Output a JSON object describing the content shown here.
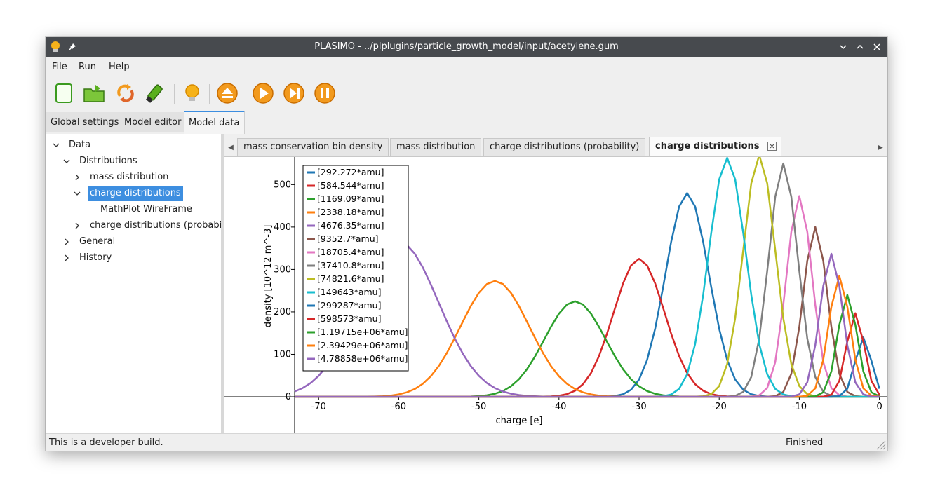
{
  "window": {
    "title": "PLASIMO - ../plplugins/particle_growth_model/input/acetylene.gum"
  },
  "menu": [
    "File",
    "Run",
    "Help"
  ],
  "toolbar": {
    "icons": [
      "new-file-icon",
      "open-folder-icon",
      "reload-icon",
      "plugin-icon",
      "bulb-icon",
      "eject-icon",
      "play-icon",
      "step-icon",
      "pause-icon"
    ]
  },
  "main_tabs": [
    {
      "label": "Global settings"
    },
    {
      "label": "Model editor"
    },
    {
      "label": "Model data",
      "active": true
    }
  ],
  "tree": [
    {
      "label": "Data",
      "level": 0,
      "expanded": true
    },
    {
      "label": "Distributions",
      "level": 1,
      "expanded": true
    },
    {
      "label": "mass distribution",
      "level": 2,
      "expanded": false
    },
    {
      "label": "charge distributions",
      "level": 2,
      "expanded": true,
      "selected": true
    },
    {
      "label": "MathPlot WireFrame",
      "level": 3,
      "leaf": true
    },
    {
      "label": "charge distributions (probabilit",
      "level": 2,
      "expanded": false
    },
    {
      "label": "General",
      "level": 1,
      "expanded": false
    },
    {
      "label": "History",
      "level": 1,
      "expanded": false
    }
  ],
  "sub_tabs": [
    {
      "label": "mass conservation bin density"
    },
    {
      "label": "mass distribution"
    },
    {
      "label": "charge distributions (probability)"
    },
    {
      "label": "charge distributions",
      "active": true
    }
  ],
  "status": {
    "left": "This is a developer build.",
    "right": "Finished"
  },
  "colors": {
    "accent": "#3d8ee0",
    "titlebar": "#474a4e",
    "icon_orange": "#f29a1e"
  },
  "chart_data": {
    "type": "line",
    "title": "",
    "xlabel": "charge [e]",
    "ylabel": "density [10^12 m^-3]",
    "xlim": [
      -73,
      1
    ],
    "ylim": [
      0,
      565
    ],
    "xticks": [
      -70,
      -60,
      -50,
      -40,
      -30,
      -20,
      -10,
      0
    ],
    "yticks": [
      0,
      100,
      200,
      300,
      400,
      500
    ],
    "grid": false,
    "legend_position": "top-left",
    "series": [
      {
        "name": "[292.272*amu]",
        "color": "#1f77b4",
        "peak_x": -24,
        "peak_y": 480,
        "sigma": 2.7
      },
      {
        "name": "[584.544*amu]",
        "color": "#d62728",
        "peak_x": -30,
        "peak_y": 325,
        "sigma": 3.2
      },
      {
        "name": "[1169.09*amu]",
        "color": "#2ca02c",
        "peak_x": -38,
        "peak_y": 225,
        "sigma": 3.8
      },
      {
        "name": "[2338.18*amu]",
        "color": "#ff7f0e",
        "peak_x": -48,
        "peak_y": 273,
        "sigma": 4.3
      },
      {
        "name": "[4676.35*amu]",
        "color": "#9467bd",
        "peak_x": -60,
        "peak_y": 365,
        "sigma": 5.0
      },
      {
        "name": "[9352.7*amu]",
        "color": "#8c564b",
        "peak_x": -8,
        "peak_y": 400,
        "sigma": 1.5
      },
      {
        "name": "[18705.4*amu]",
        "color": "#e377c2",
        "peak_x": -10,
        "peak_y": 473,
        "sigma": 1.6
      },
      {
        "name": "[37410.8*amu]",
        "color": "#7f7f7f",
        "peak_x": -12,
        "peak_y": 550,
        "sigma": 1.8
      },
      {
        "name": "[74821.6*amu]",
        "color": "#bcbd22",
        "peak_x": -15,
        "peak_y": 570,
        "sigma": 2.0
      },
      {
        "name": "[149643*amu]",
        "color": "#17becf",
        "peak_x": -19,
        "peak_y": 563,
        "sigma": 2.3
      },
      {
        "name": "[299287*amu]",
        "color": "#1f77b4",
        "peak_x": -2,
        "peak_y": 140,
        "sigma": 1.0
      },
      {
        "name": "[598573*amu]",
        "color": "#d62728",
        "peak_x": -3,
        "peak_y": 197,
        "sigma": 1.1
      },
      {
        "name": "[1.19715e+06*amu]",
        "color": "#2ca02c",
        "peak_x": -4,
        "peak_y": 240,
        "sigma": 1.2
      },
      {
        "name": "[2.39429e+06*amu]",
        "color": "#ff7f0e",
        "peak_x": -5,
        "peak_y": 285,
        "sigma": 1.3
      },
      {
        "name": "[4.78858e+06*amu]",
        "color": "#9467bd",
        "peak_x": -6,
        "peak_y": 337,
        "sigma": 1.4
      }
    ]
  }
}
